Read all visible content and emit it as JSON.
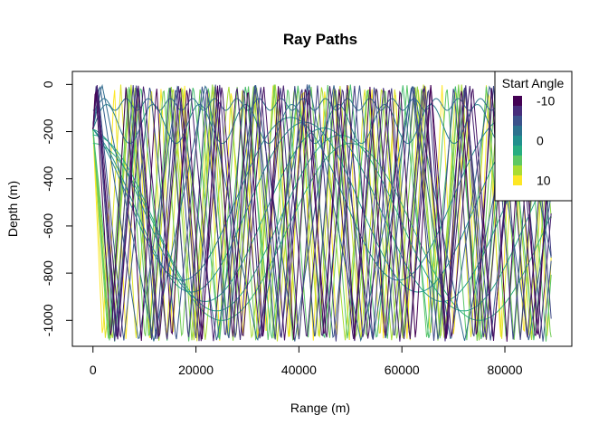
{
  "chart_data": {
    "type": "line",
    "title": "Ray Paths",
    "xlabel": "Range (m)",
    "ylabel": "Depth (m)",
    "xlim": [
      -4000,
      93000
    ],
    "ylim": [
      -1110,
      55
    ],
    "x_ticks": [
      0,
      20000,
      40000,
      60000,
      80000
    ],
    "y_ticks": [
      0,
      -200,
      -400,
      -600,
      -800,
      -1000
    ],
    "grid": false,
    "legend": {
      "title": "Start Angle",
      "position": "top-right",
      "labels": [
        {
          "text": "-10",
          "value": -10
        },
        {
          "text": "0",
          "value": 0
        },
        {
          "text": "10",
          "value": 10
        }
      ],
      "swatches": [
        "#440154",
        "#472d7b",
        "#3b528b",
        "#2c728e",
        "#21908d",
        "#27ad81",
        "#5dc863",
        "#aadc32",
        "#fde725"
      ]
    },
    "source": {
      "range": 0,
      "depth": -190
    },
    "surface_depth": 0,
    "bottom_depth": -1090,
    "max_range": 89000,
    "start_angles": [
      -11,
      -10,
      -9,
      -8,
      -7,
      -6,
      -5,
      -4,
      -3,
      -2,
      -1,
      0,
      1,
      2,
      3,
      4,
      5,
      6,
      7,
      8,
      9,
      10,
      11,
      12
    ],
    "refracted_rays": [
      {
        "angle": -2,
        "upper_turn": -60,
        "lower_turn": -110,
        "cycle": 4300
      },
      {
        "angle": -1,
        "upper_turn": -85,
        "lower_turn": -250,
        "cycle": 9000
      },
      {
        "angle": 0,
        "upper_turn": -140,
        "lower_turn": -830,
        "cycle": 42000
      },
      {
        "angle": 1,
        "upper_turn": -160,
        "lower_turn": -880,
        "cycle": 44000
      },
      {
        "angle": 2,
        "upper_turn": -185,
        "lower_turn": -920,
        "cycle": 46000
      },
      {
        "angle": 3,
        "upper_turn": -215,
        "lower_turn": -960,
        "cycle": 48000
      },
      {
        "angle": 4,
        "upper_turn": -250,
        "lower_turn": -1000,
        "cycle": 50000
      }
    ],
    "colors": {
      "axis": "#000000",
      "background": "#ffffff"
    }
  }
}
